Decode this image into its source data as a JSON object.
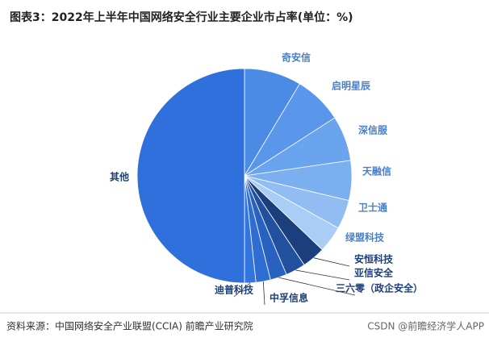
{
  "chart_data": {
    "type": "pie",
    "title": "图表3：2022年上半年中国网络安全行业主要企业市占率(单位：%)",
    "categories": [
      "奇安信",
      "启明星辰",
      "深信服",
      "天融信",
      "卫士通",
      "绿盟科技",
      "安恒科技",
      "亚信安全",
      "三六零（政企安全）",
      "中孚信息",
      "迪普科技",
      "其他"
    ],
    "values": [
      8.6,
      7.3,
      6.8,
      6.0,
      4.4,
      4.0,
      3.5,
      3.0,
      2.5,
      2.2,
      1.7,
      50
    ],
    "colors": [
      "#4b8be6",
      "#5a96ea",
      "#6aa3ee",
      "#7cafef",
      "#91bdf3",
      "#aacdf6",
      "#1b3f7c",
      "#21519e",
      "#2961c0",
      "#2e6dd4",
      "#3275dd",
      "#2f70dc"
    ],
    "source": "资料来源：中国网络安全产业联盟(CCIA) 前瞻产业研究院",
    "watermark": "CSDN @前瞻经济学人APP"
  }
}
